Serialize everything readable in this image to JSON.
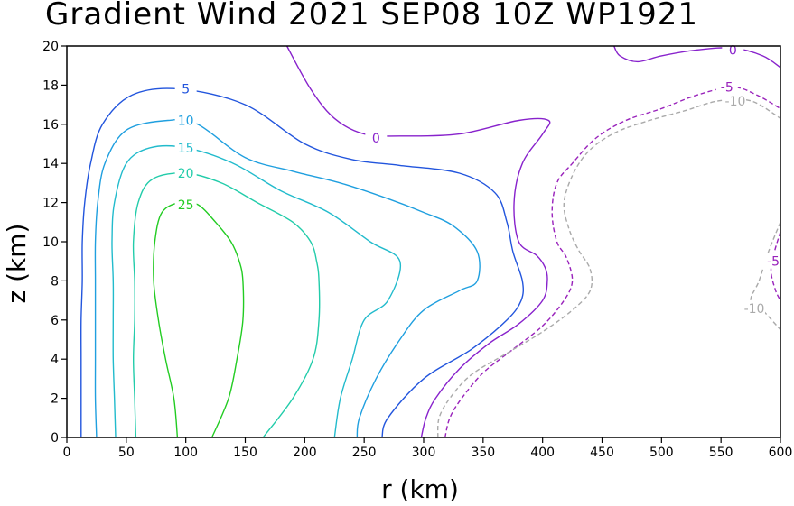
{
  "chart_data": {
    "type": "contour",
    "title": "Gradient Wind 2021 SEP08 10Z   WP1921",
    "xlabel": "r (km)",
    "ylabel": "z (km)",
    "xlim": [
      0,
      600
    ],
    "ylim": [
      0,
      20
    ],
    "xticks": [
      "0",
      "50",
      "100",
      "150",
      "200",
      "250",
      "300",
      "350",
      "400",
      "450",
      "500",
      "550",
      "600"
    ],
    "yticks": [
      "0",
      "2",
      "4",
      "6",
      "8",
      "10",
      "12",
      "14",
      "16",
      "18",
      "20"
    ],
    "contours": [
      {
        "level": 25,
        "label": "25",
        "color": "#22cc22",
        "dashed": false,
        "points": [
          [
            93,
            0
          ],
          [
            90,
            2
          ],
          [
            83,
            4
          ],
          [
            77,
            6
          ],
          [
            73,
            8
          ],
          [
            74,
            10
          ],
          [
            80,
            11.5
          ],
          [
            95,
            12
          ],
          [
            110,
            11.9
          ],
          [
            125,
            11
          ],
          [
            138,
            10
          ],
          [
            145,
            9
          ],
          [
            148,
            8
          ],
          [
            148,
            6
          ],
          [
            143,
            4
          ],
          [
            136,
            2
          ],
          [
            122,
            0
          ]
        ],
        "label_at": [
          100,
          11.9
        ]
      },
      {
        "level": 20,
        "label": "20",
        "color": "#22ccaa",
        "dashed": false,
        "points": [
          [
            58,
            0
          ],
          [
            57,
            2
          ],
          [
            56,
            4
          ],
          [
            57,
            6
          ],
          [
            57,
            8
          ],
          [
            56,
            10
          ],
          [
            60,
            12
          ],
          [
            72,
            13.2
          ],
          [
            100,
            13.5
          ],
          [
            130,
            13
          ],
          [
            160,
            12
          ],
          [
            190,
            11
          ],
          [
            205,
            10
          ],
          [
            210,
            9
          ],
          [
            212,
            8
          ],
          [
            212,
            6
          ],
          [
            207,
            4
          ],
          [
            190,
            2
          ],
          [
            165,
            0
          ]
        ],
        "label_at": [
          100,
          13.5
        ]
      },
      {
        "level": 15,
        "label": "15",
        "color": "#22bbcc",
        "dashed": false,
        "points": [
          [
            41,
            0
          ],
          [
            40,
            2
          ],
          [
            39,
            4
          ],
          [
            39,
            6
          ],
          [
            39,
            8
          ],
          [
            38,
            10
          ],
          [
            40,
            12
          ],
          [
            50,
            14
          ],
          [
            70,
            14.8
          ],
          [
            100,
            14.8
          ],
          [
            140,
            14
          ],
          [
            180,
            12.6
          ],
          [
            220,
            11.5
          ],
          [
            255,
            10
          ],
          [
            280,
            9
          ],
          [
            270,
            7
          ],
          [
            250,
            6
          ],
          [
            240,
            4
          ],
          [
            230,
            2
          ],
          [
            225,
            0
          ]
        ],
        "label_at": [
          100,
          14.8
        ]
      },
      {
        "level": 10,
        "label": "10",
        "color": "#1f9fdf",
        "dashed": false,
        "points": [
          [
            25,
            0
          ],
          [
            24,
            2
          ],
          [
            24,
            4
          ],
          [
            24,
            6
          ],
          [
            24,
            8
          ],
          [
            24,
            10
          ],
          [
            26,
            12
          ],
          [
            32,
            14
          ],
          [
            50,
            15.7
          ],
          [
            85,
            16.2
          ],
          [
            110,
            16
          ],
          [
            150,
            14.3
          ],
          [
            190,
            13.6
          ],
          [
            230,
            13
          ],
          [
            270,
            12.2
          ],
          [
            300,
            11.5
          ],
          [
            325,
            10.8
          ],
          [
            345,
            9.5
          ],
          [
            345,
            8
          ],
          [
            330,
            7.5
          ],
          [
            300,
            6.5
          ],
          [
            280,
            5
          ],
          [
            260,
            3
          ],
          [
            246,
            1
          ],
          [
            244,
            0
          ]
        ],
        "label_at": [
          100,
          16.2
        ]
      },
      {
        "level": 5,
        "label": "5",
        "color": "#2255dd",
        "dashed": false,
        "points": [
          [
            12,
            0
          ],
          [
            12,
            2
          ],
          [
            12,
            4
          ],
          [
            12,
            6
          ],
          [
            13,
            8
          ],
          [
            13,
            10
          ],
          [
            15,
            12
          ],
          [
            20,
            14
          ],
          [
            30,
            16
          ],
          [
            55,
            17.5
          ],
          [
            95,
            17.8
          ],
          [
            150,
            17
          ],
          [
            200,
            15
          ],
          [
            240,
            14.2
          ],
          [
            280,
            13.9
          ],
          [
            330,
            13.5
          ],
          [
            360,
            12.5
          ],
          [
            370,
            11
          ],
          [
            375,
            9.5
          ],
          [
            383,
            8
          ],
          [
            382,
            7
          ],
          [
            370,
            6
          ],
          [
            340,
            4.5
          ],
          [
            300,
            3
          ],
          [
            270,
            1
          ],
          [
            265,
            0
          ]
        ],
        "label_at": [
          100,
          17.8
        ]
      },
      {
        "level": 0,
        "label": "0",
        "color": "#8822cc",
        "dashed": false,
        "points": [
          [
            298,
            0
          ],
          [
            302,
            1
          ],
          [
            310,
            2
          ],
          [
            330,
            3.5
          ],
          [
            355,
            4.8
          ],
          [
            380,
            5.8
          ],
          [
            400,
            7
          ],
          [
            404,
            8
          ],
          [
            402,
            8.7
          ],
          [
            395,
            9.3
          ],
          [
            380,
            10
          ],
          [
            376,
            12
          ],
          [
            383,
            14
          ],
          [
            400,
            15.5
          ],
          [
            405,
            16.2
          ],
          [
            380,
            16.2
          ],
          [
            330,
            15.5
          ],
          [
            280,
            15.4
          ],
          [
            250,
            15.5
          ],
          [
            225,
            16.3
          ],
          [
            205,
            17.8
          ],
          [
            185,
            20
          ]
        ],
        "label_at": [
          260,
          15.3
        ]
      },
      {
        "level": 0,
        "label": "0",
        "color": "#8822cc",
        "dashed": false,
        "points": [
          [
            460,
            20
          ],
          [
            465,
            19.5
          ],
          [
            480,
            19.2
          ],
          [
            500,
            19.5
          ],
          [
            530,
            19.8
          ],
          [
            560,
            19.9
          ],
          [
            585,
            19.5
          ],
          [
            600,
            18.9
          ]
        ],
        "label_at": [
          560,
          19.8
        ]
      },
      {
        "level": -5,
        "label": "-5",
        "color": "#9922bb",
        "dashed": true,
        "points": [
          [
            318,
            0
          ],
          [
            322,
            1
          ],
          [
            332,
            2
          ],
          [
            350,
            3.3
          ],
          [
            375,
            4.5
          ],
          [
            400,
            5.7
          ],
          [
            418,
            7
          ],
          [
            425,
            8
          ],
          [
            420,
            9.2
          ],
          [
            412,
            10
          ],
          [
            408,
            11.5
          ],
          [
            412,
            13
          ],
          [
            425,
            14
          ],
          [
            445,
            15.3
          ],
          [
            470,
            16.2
          ],
          [
            500,
            16.8
          ],
          [
            530,
            17.5
          ],
          [
            560,
            17.9
          ],
          [
            580,
            17.5
          ],
          [
            600,
            16.8
          ]
        ],
        "label_at": [
          555,
          17.9
        ]
      },
      {
        "level": -10,
        "label": "-10",
        "color": "#aaaaaa",
        "dashed": true,
        "points": [
          [
            312,
            0
          ],
          [
            313,
            1
          ],
          [
            322,
            2
          ],
          [
            340,
            3.2
          ],
          [
            370,
            4.3
          ],
          [
            400,
            5.4
          ],
          [
            425,
            6.5
          ],
          [
            440,
            7.5
          ],
          [
            440,
            8.6
          ],
          [
            430,
            9.6
          ],
          [
            422,
            10.7
          ],
          [
            418,
            12
          ],
          [
            426,
            13.5
          ],
          [
            440,
            14.7
          ],
          [
            462,
            15.6
          ],
          [
            490,
            16.2
          ],
          [
            520,
            16.7
          ],
          [
            548,
            17.2
          ],
          [
            575,
            17.2
          ],
          [
            600,
            16.3
          ]
        ],
        "label_at": [
          562,
          17.2
        ]
      },
      {
        "level": -5,
        "label": "-5",
        "color": "#9922bb",
        "dashed": true,
        "points": [
          [
            600,
            10.5
          ],
          [
            595,
            9.5
          ],
          [
            592,
            8.5
          ],
          [
            596,
            7.5
          ],
          [
            600,
            7
          ]
        ],
        "label_at": [
          594,
          9
        ]
      },
      {
        "level": -10,
        "label": "-10",
        "color": "#aaaaaa",
        "dashed": true,
        "points": [
          [
            600,
            11
          ],
          [
            590,
            9.5
          ],
          [
            582,
            8
          ],
          [
            575,
            7
          ],
          [
            585,
            6.5
          ],
          [
            600,
            5.5
          ]
        ],
        "label_at": [
          578,
          6.6
        ]
      }
    ]
  }
}
